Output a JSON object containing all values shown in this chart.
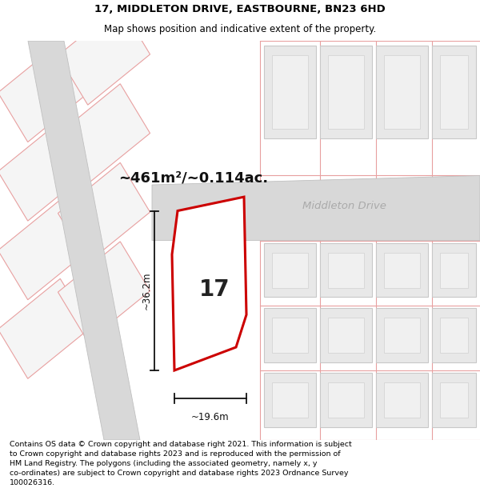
{
  "title": "17, MIDDLETON DRIVE, EASTBOURNE, BN23 6HD",
  "subtitle": "Map shows position and indicative extent of the property.",
  "area_text": "~461m²/~0.114ac.",
  "street_name": "Middleton Drive",
  "plot_number": "17",
  "dim_height": "~36.2m",
  "dim_width": "~19.6m",
  "footer": "Contains OS data © Crown copyright and database right 2021. This information is subject to Crown copyright and database rights 2023 and is reproduced with the permission of HM Land Registry. The polygons (including the associated geometry, namely x, y co-ordinates) are subject to Crown copyright and database rights 2023 Ordnance Survey 100026316.",
  "bg_color": "#edf2ea",
  "property_line_color": "#cc0000",
  "property_fill": "#ffffff",
  "dim_line_color": "#111111",
  "faint_line_color": "#e8a0a0",
  "building_fill": "#e8e8e8",
  "building_outline": "#c8c8c8",
  "road_fill": "#d8d8d8",
  "road_outline": "#c0c0c0",
  "title_fontsize": 9.5,
  "subtitle_fontsize": 8.5,
  "footer_fontsize": 6.8
}
